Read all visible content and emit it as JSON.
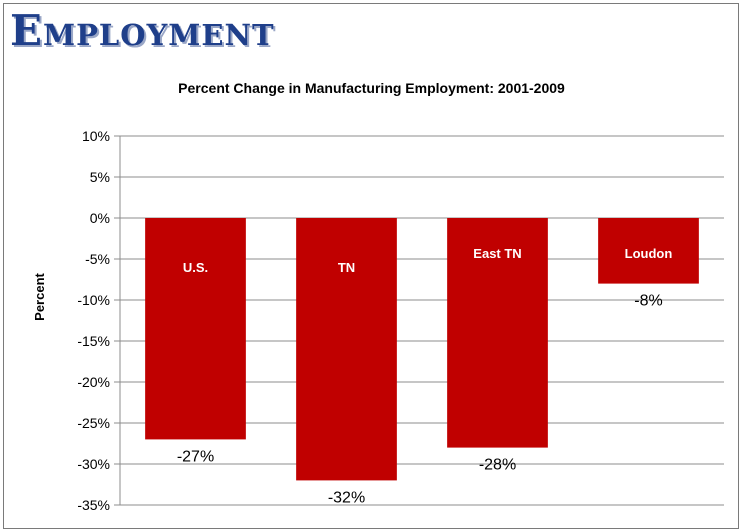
{
  "slide": {
    "title": "Employment"
  },
  "chart_data": {
    "type": "bar",
    "title": "Percent Change in Manufacturing Employment:  2001-2009",
    "xlabel": "",
    "ylabel": "Percent",
    "categories": [
      "U.S.",
      "TN",
      "East TN",
      "Loudon"
    ],
    "values": [
      -27,
      -32,
      -28,
      -8
    ],
    "data_labels": [
      "-27%",
      "-32%",
      "-28%",
      "-8%"
    ],
    "ylim": [
      -35,
      10
    ],
    "yticks": [
      10,
      5,
      0,
      -5,
      -10,
      -15,
      -20,
      -25,
      -30,
      -35
    ],
    "ytick_labels": [
      "10%",
      "5%",
      "0%",
      "-5%",
      "-10%",
      "-15%",
      "-20%",
      "-25%",
      "-30%",
      "-35%"
    ],
    "grid": true,
    "legend": "none",
    "colors": {
      "bar": "#c00000",
      "grid": "#8c8c8c",
      "category_label": "#ffffff"
    }
  }
}
